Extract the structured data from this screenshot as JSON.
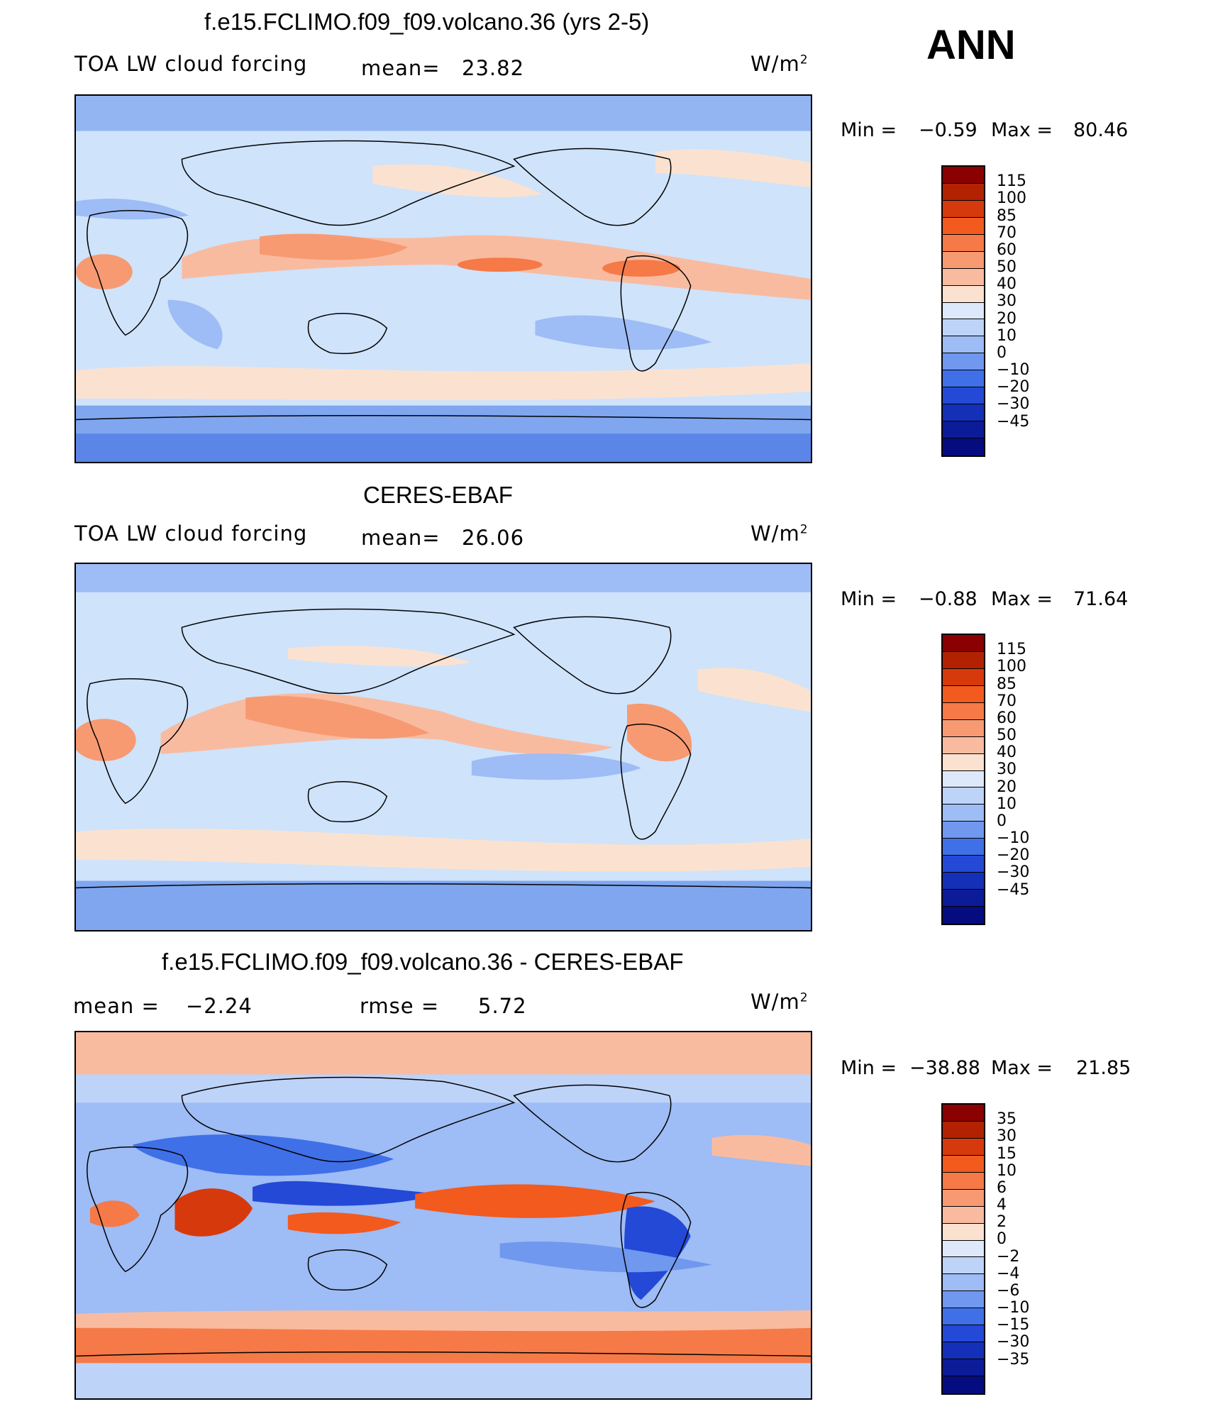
{
  "season": "ANN",
  "unit_base": "W/m",
  "unit_exp": "2",
  "panels": [
    {
      "title": "f.e15.FCLIMO.f09_f09.volcano.36 (yrs 2-5)",
      "variable": "TOA LW cloud forcing",
      "mean_label": "mean=",
      "mean_value": "23.82",
      "min_label": "Min =",
      "min_value": "−0.59",
      "max_label": "Max =",
      "max_value": "80.46",
      "colorbar_labels": [
        "115",
        "100",
        "85",
        "70",
        "60",
        "50",
        "40",
        "30",
        "20",
        "10",
        "0",
        "−10",
        "−20",
        "−30",
        "−45"
      ]
    },
    {
      "title": "CERES-EBAF",
      "variable": "TOA LW cloud forcing",
      "mean_label": "mean=",
      "mean_value": "26.06",
      "min_label": "Min =",
      "min_value": "−0.88",
      "max_label": "Max =",
      "max_value": "71.64",
      "colorbar_labels": [
        "115",
        "100",
        "85",
        "70",
        "60",
        "50",
        "40",
        "30",
        "20",
        "10",
        "0",
        "−10",
        "−20",
        "−30",
        "−45"
      ]
    },
    {
      "title": "f.e15.FCLIMO.f09_f09.volcano.36 - CERES-EBAF",
      "mean_label": "mean =",
      "mean_value": "−2.24",
      "rmse_label": "rmse =",
      "rmse_value": "5.72",
      "min_label": "Min =",
      "min_value": "−38.88",
      "max_label": "Max =",
      "max_value": "21.85",
      "colorbar_labels": [
        "35",
        "30",
        "15",
        "10",
        "6",
        "4",
        "2",
        "0",
        "−2",
        "−4",
        "−6",
        "−10",
        "−15",
        "−30",
        "−35"
      ]
    }
  ],
  "colorbar_colors": [
    "#8b0000",
    "#b32200",
    "#d63a0c",
    "#f25a1e",
    "#f57a47",
    "#f79a72",
    "#f9bba0",
    "#fbe2d0",
    "#dde9fb",
    "#bed3f8",
    "#9ebcf5",
    "#6f98ee",
    "#3f70e8",
    "#2349d6",
    "#1530b8",
    "#0c1c98",
    "#050c80"
  ]
}
